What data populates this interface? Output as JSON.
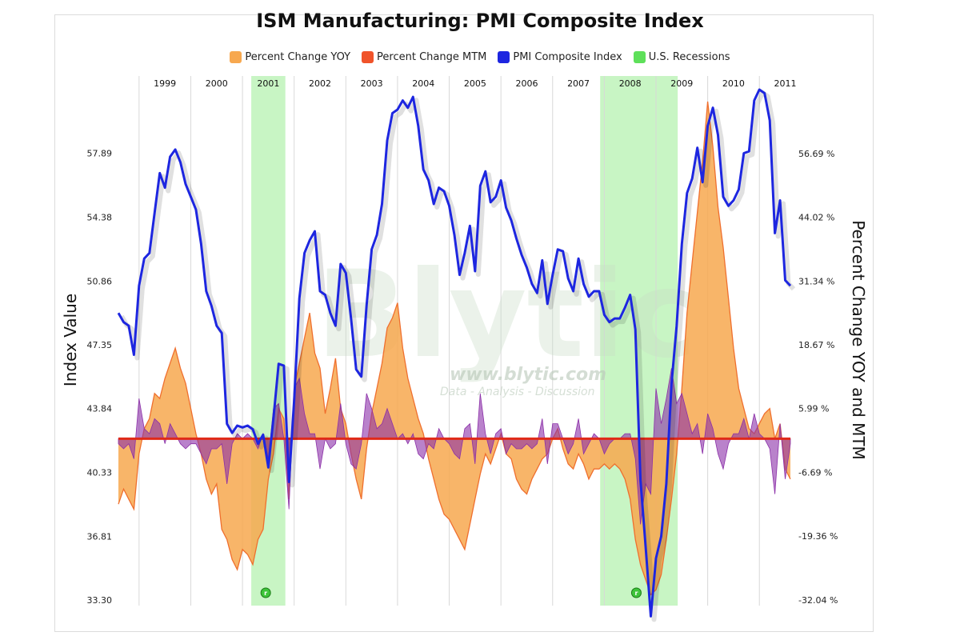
{
  "chart_data": {
    "type": "line",
    "title": "ISM Manufacturing: PMI Composite Index",
    "ylabel_left": "Index Value",
    "ylabel_right": "Percent Change YOY and MTM",
    "left_axis": {
      "ticks": [
        "57.89",
        "54.38",
        "50.86",
        "47.35",
        "43.84",
        "40.33",
        "36.81",
        "33.30"
      ],
      "range": [
        33.3,
        61.4
      ]
    },
    "right_axis": {
      "ticks": [
        "56.69 %",
        "44.02 %",
        "31.34 %",
        "18.67 %",
        "5.99 %",
        "-6.69 %",
        "-19.36 %",
        "-32.04 %"
      ],
      "range": [
        -32.04,
        69.37
      ]
    },
    "x_range": [
      1998.6,
      2011.6
    ],
    "x_year_labels": [
      "1999",
      "2000",
      "2001",
      "2002",
      "2003",
      "2004",
      "2005",
      "2006",
      "2007",
      "2008",
      "2009",
      "2010",
      "2011"
    ],
    "recessions": [
      {
        "start": 2001.17,
        "end": 2001.83,
        "marker": "r"
      },
      {
        "start": 2007.92,
        "end": 2009.42,
        "marker": "r"
      }
    ],
    "colors": {
      "yoy_fill": "#f7a84f",
      "yoy_line": "#ef6f2e",
      "mtm": "#8b2fa8",
      "pmi": "#1d26e0",
      "recession": "#b6f2b0",
      "zero_line": "#e02a18",
      "grid": "#d8d8d8"
    },
    "series": [
      {
        "name": "PMI Composite Index",
        "axis": "left",
        "x": [
          1998.6,
          1998.7,
          1998.8,
          1998.9,
          1999.0,
          1999.1,
          1999.2,
          1999.3,
          1999.4,
          1999.5,
          1999.6,
          1999.7,
          1999.8,
          1999.9,
          2000.0,
          2000.1,
          2000.2,
          2000.3,
          2000.4,
          2000.5,
          2000.6,
          2000.7,
          2000.8,
          2000.9,
          2001.0,
          2001.1,
          2001.2,
          2001.3,
          2001.4,
          2001.5,
          2001.6,
          2001.7,
          2001.8,
          2001.9,
          2002.0,
          2002.1,
          2002.2,
          2002.3,
          2002.4,
          2002.5,
          2002.6,
          2002.7,
          2002.8,
          2002.9,
          2003.0,
          2003.1,
          2003.2,
          2003.3,
          2003.4,
          2003.5,
          2003.6,
          2003.7,
          2003.8,
          2003.9,
          2004.0,
          2004.1,
          2004.2,
          2004.3,
          2004.4,
          2004.5,
          2004.6,
          2004.7,
          2004.8,
          2004.9,
          2005.0,
          2005.1,
          2005.2,
          2005.3,
          2005.4,
          2005.5,
          2005.6,
          2005.7,
          2005.8,
          2005.9,
          2006.0,
          2006.1,
          2006.2,
          2006.3,
          2006.4,
          2006.5,
          2006.6,
          2006.7,
          2006.8,
          2006.9,
          2007.0,
          2007.1,
          2007.2,
          2007.3,
          2007.4,
          2007.5,
          2007.6,
          2007.7,
          2007.8,
          2007.9,
          2008.0,
          2008.1,
          2008.2,
          2008.3,
          2008.4,
          2008.5,
          2008.6,
          2008.7,
          2008.8,
          2008.9,
          2009.0,
          2009.1,
          2009.2,
          2009.3,
          2009.4,
          2009.5,
          2009.6,
          2009.7,
          2009.8,
          2009.9,
          2010.0,
          2010.1,
          2010.2,
          2010.3,
          2010.4,
          2010.5,
          2010.6,
          2010.7,
          2010.8,
          2010.9,
          2011.0,
          2011.1,
          2011.2,
          2011.3,
          2011.4,
          2011.5,
          2011.6
        ],
        "y": [
          49.1,
          48.6,
          48.4,
          46.8,
          50.6,
          52.1,
          52.4,
          54.6,
          56.8,
          56.0,
          57.7,
          58.1,
          57.4,
          56.2,
          55.5,
          54.8,
          52.9,
          50.3,
          49.5,
          48.4,
          48.0,
          43.0,
          42.5,
          42.9,
          42.8,
          42.9,
          42.7,
          41.9,
          42.4,
          40.6,
          43.3,
          46.3,
          46.2,
          39.8,
          44.3,
          49.9,
          52.4,
          53.1,
          53.6,
          50.3,
          50.1,
          49.1,
          48.4,
          51.8,
          51.3,
          48.8,
          46.0,
          45.6,
          49.5,
          52.6,
          53.4,
          55.1,
          58.6,
          60.1,
          60.3,
          60.8,
          60.4,
          61.0,
          59.4,
          57.0,
          56.4,
          55.1,
          56.0,
          55.8,
          55.0,
          53.4,
          51.2,
          52.4,
          53.9,
          51.4,
          56.1,
          56.9,
          55.2,
          55.5,
          56.4,
          54.9,
          54.2,
          53.2,
          52.3,
          51.6,
          50.7,
          50.2,
          52.0,
          49.6,
          51.2,
          52.6,
          52.5,
          51.0,
          50.3,
          52.1,
          50.7,
          50.0,
          50.3,
          50.3,
          49.0,
          48.6,
          48.8,
          48.8,
          49.4,
          50.1,
          48.2,
          39.9,
          36.2,
          32.4,
          35.6,
          36.8,
          39.7,
          45.2,
          48.4,
          52.9,
          55.7,
          56.5,
          58.2,
          56.3,
          59.4,
          60.4,
          58.9,
          55.5,
          55.0,
          55.3,
          55.9,
          57.9,
          58.0,
          60.8,
          61.4,
          61.2,
          59.7,
          53.5,
          55.3,
          50.9,
          50.6
        ]
      },
      {
        "name": "Percent Change YOY",
        "axis": "right",
        "x": [
          1998.6,
          1998.7,
          1998.8,
          1998.9,
          1999.0,
          1999.1,
          1999.2,
          1999.3,
          1999.4,
          1999.5,
          1999.6,
          1999.7,
          1999.8,
          1999.9,
          2000.0,
          2000.1,
          2000.2,
          2000.3,
          2000.4,
          2000.5,
          2000.6,
          2000.7,
          2000.8,
          2000.9,
          2001.0,
          2001.1,
          2001.2,
          2001.3,
          2001.4,
          2001.5,
          2001.6,
          2001.7,
          2001.8,
          2001.9,
          2002.0,
          2002.1,
          2002.2,
          2002.3,
          2002.4,
          2002.5,
          2002.6,
          2002.7,
          2002.8,
          2002.9,
          2003.0,
          2003.1,
          2003.2,
          2003.3,
          2003.4,
          2003.5,
          2003.6,
          2003.7,
          2003.8,
          2003.9,
          2004.0,
          2004.1,
          2004.2,
          2004.3,
          2004.4,
          2004.5,
          2004.6,
          2004.7,
          2004.8,
          2004.9,
          2005.0,
          2005.1,
          2005.2,
          2005.3,
          2005.4,
          2005.5,
          2005.6,
          2005.7,
          2005.8,
          2005.9,
          2006.0,
          2006.1,
          2006.2,
          2006.3,
          2006.4,
          2006.5,
          2006.6,
          2006.7,
          2006.8,
          2006.9,
          2007.0,
          2007.1,
          2007.2,
          2007.3,
          2007.4,
          2007.5,
          2007.6,
          2007.7,
          2007.8,
          2007.9,
          2008.0,
          2008.1,
          2008.2,
          2008.3,
          2008.4,
          2008.5,
          2008.6,
          2008.7,
          2008.8,
          2008.9,
          2009.0,
          2009.1,
          2009.2,
          2009.3,
          2009.4,
          2009.5,
          2009.6,
          2009.7,
          2009.8,
          2009.9,
          2010.0,
          2010.1,
          2010.2,
          2010.3,
          2010.4,
          2010.5,
          2010.6,
          2010.7,
          2010.8,
          2010.9,
          2011.0,
          2011.1,
          2011.2,
          2011.3,
          2011.4,
          2011.5,
          2011.6
        ],
        "y": [
          -13.0,
          -10.0,
          -12.0,
          -14.0,
          -3.0,
          2.0,
          4.0,
          9.0,
          8.0,
          12.0,
          15.0,
          18.0,
          14.0,
          11.0,
          6.0,
          1.0,
          -3.0,
          -8.0,
          -11.0,
          -9.0,
          -18.0,
          -20.0,
          -24.0,
          -26.0,
          -22.0,
          -23.0,
          -25.0,
          -20.0,
          -18.0,
          -8.0,
          -3.0,
          6.0,
          4.0,
          -12.0,
          10.0,
          15.0,
          20.0,
          25.0,
          17.0,
          14.0,
          5.0,
          10.0,
          16.0,
          6.0,
          3.0,
          -3.0,
          -8.0,
          -12.0,
          -2.0,
          5.0,
          10.0,
          15.0,
          22.0,
          24.0,
          27.0,
          18.0,
          12.0,
          8.0,
          4.0,
          1.0,
          -4.0,
          -8.0,
          -12.0,
          -15.0,
          -16.0,
          -18.0,
          -20.0,
          -22.0,
          -17.0,
          -12.0,
          -7.0,
          -3.0,
          -5.0,
          -2.0,
          1.0,
          -3.0,
          -4.0,
          -8.0,
          -10.0,
          -11.0,
          -8.0,
          -6.0,
          -4.0,
          -3.0,
          0.0,
          2.0,
          -2.0,
          -5.0,
          -6.0,
          -3.0,
          -5.0,
          -8.0,
          -6.0,
          -6.0,
          -5.0,
          -6.0,
          -5.0,
          -6.0,
          -8.0,
          -12.0,
          -20.0,
          -25.0,
          -28.0,
          -31.0,
          -30.0,
          -27.0,
          -20.0,
          -12.0,
          -3.0,
          10.0,
          25.0,
          35.0,
          45.0,
          55.0,
          67.0,
          58.0,
          46.0,
          38.0,
          28.0,
          18.0,
          10.0,
          6.0,
          2.0,
          1.0,
          3.0,
          5.0,
          6.0,
          0.0,
          3.0,
          -6.0,
          -8.0
        ]
      },
      {
        "name": "Percent Change MTM",
        "axis": "right",
        "x": [
          1998.6,
          1998.7,
          1998.8,
          1998.9,
          1999.0,
          1999.1,
          1999.2,
          1999.3,
          1999.4,
          1999.5,
          1999.6,
          1999.7,
          1999.8,
          1999.9,
          2000.0,
          2000.1,
          2000.2,
          2000.3,
          2000.4,
          2000.5,
          2000.6,
          2000.7,
          2000.8,
          2000.9,
          2001.0,
          2001.1,
          2001.2,
          2001.3,
          2001.4,
          2001.5,
          2001.6,
          2001.7,
          2001.8,
          2001.9,
          2002.0,
          2002.1,
          2002.2,
          2002.3,
          2002.4,
          2002.5,
          2002.6,
          2002.7,
          2002.8,
          2002.9,
          2003.0,
          2003.1,
          2003.2,
          2003.3,
          2003.4,
          2003.5,
          2003.6,
          2003.7,
          2003.8,
          2003.9,
          2004.0,
          2004.1,
          2004.2,
          2004.3,
          2004.4,
          2004.5,
          2004.6,
          2004.7,
          2004.8,
          2004.9,
          2005.0,
          2005.1,
          2005.2,
          2005.3,
          2005.4,
          2005.5,
          2005.6,
          2005.7,
          2005.8,
          2005.9,
          2006.0,
          2006.1,
          2006.2,
          2006.3,
          2006.4,
          2006.5,
          2006.6,
          2006.7,
          2006.8,
          2006.9,
          2007.0,
          2007.1,
          2007.2,
          2007.3,
          2007.4,
          2007.5,
          2007.6,
          2007.7,
          2007.8,
          2007.9,
          2008.0,
          2008.1,
          2008.2,
          2008.3,
          2008.4,
          2008.5,
          2008.6,
          2008.7,
          2008.8,
          2008.9,
          2009.0,
          2009.1,
          2009.2,
          2009.3,
          2009.4,
          2009.5,
          2009.6,
          2009.7,
          2009.8,
          2009.9,
          2010.0,
          2010.1,
          2010.2,
          2010.3,
          2010.4,
          2010.5,
          2010.6,
          2010.7,
          2010.8,
          2010.9,
          2011.0,
          2011.1,
          2011.2,
          2011.3,
          2011.4,
          2011.5,
          2011.6
        ],
        "y": [
          -1.0,
          -2.0,
          -1.0,
          -4.0,
          8.0,
          2.0,
          1.0,
          4.0,
          3.0,
          -1.0,
          3.0,
          1.0,
          -1.0,
          -2.0,
          -1.0,
          -1.0,
          -3.0,
          -5.0,
          -2.0,
          -2.0,
          -1.0,
          -9.0,
          -1.0,
          1.0,
          0.0,
          1.0,
          0.0,
          -2.0,
          1.0,
          -4.0,
          6.0,
          7.0,
          0.0,
          -14.0,
          10.0,
          12.0,
          5.0,
          1.0,
          1.0,
          -6.0,
          0.0,
          -2.0,
          -1.0,
          7.0,
          -1.0,
          -5.0,
          -6.0,
          -1.0,
          9.0,
          6.0,
          2.0,
          3.0,
          6.0,
          3.0,
          0.0,
          1.0,
          -1.0,
          1.0,
          -3.0,
          -4.0,
          -1.0,
          -2.0,
          2.0,
          0.0,
          -1.0,
          -3.0,
          -4.0,
          2.0,
          3.0,
          -5.0,
          9.0,
          1.0,
          -3.0,
          1.0,
          2.0,
          -3.0,
          -1.0,
          -2.0,
          -2.0,
          -1.0,
          -2.0,
          -1.0,
          4.0,
          -5.0,
          3.0,
          3.0,
          0.0,
          -3.0,
          -1.0,
          4.0,
          -3.0,
          -1.0,
          1.0,
          0.0,
          -3.0,
          -1.0,
          0.0,
          0.0,
          1.0,
          1.0,
          -4.0,
          -17.0,
          -9.0,
          -11.0,
          10.0,
          3.0,
          8.0,
          14.0,
          7.0,
          9.0,
          5.0,
          1.0,
          3.0,
          -3.0,
          5.0,
          2.0,
          -3.0,
          -6.0,
          -1.0,
          1.0,
          1.0,
          4.0,
          0.0,
          5.0,
          1.0,
          0.0,
          -2.0,
          -11.0,
          3.0,
          -8.0,
          -1.0
        ]
      }
    ]
  },
  "legend": [
    {
      "label": "Percent Change YOY",
      "color": "#f7a84f"
    },
    {
      "label": "Percent Change MTM",
      "color": "#f0532a"
    },
    {
      "label": "PMI Composite Index",
      "color": "#1d26e0"
    },
    {
      "label": "U.S. Recessions",
      "color": "#5ee05a"
    }
  ],
  "watermark": {
    "logo": "Blytic",
    "url": "www.blytic.com",
    "tagline": "Data - Analysis - Discussion"
  }
}
